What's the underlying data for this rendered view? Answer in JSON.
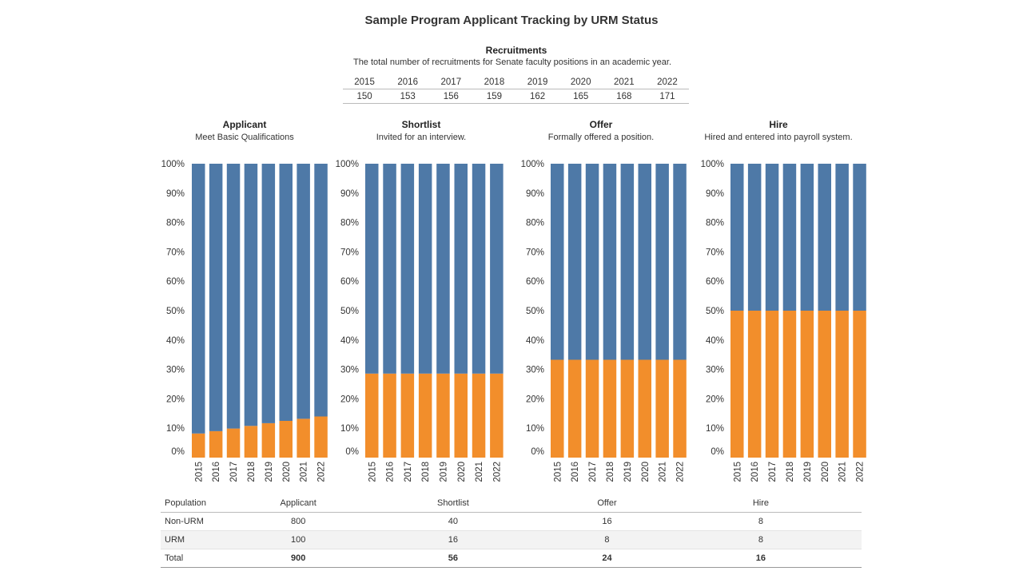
{
  "title": "Sample Program Applicant Tracking by URM Status",
  "recruitments": {
    "title": "Recruitments",
    "subtitle": "The total number of recruitments for Senate faculty positions in an academic year.",
    "years": [
      "2015",
      "2016",
      "2017",
      "2018",
      "2019",
      "2020",
      "2021",
      "2022"
    ],
    "values": [
      "150",
      "153",
      "156",
      "159",
      "162",
      "165",
      "168",
      "171"
    ]
  },
  "panels": [
    {
      "title": "Applicant",
      "subtitle": "Meet Basic Qualifications"
    },
    {
      "title": "Shortlist",
      "subtitle": "Invited for an interview."
    },
    {
      "title": "Offer",
      "subtitle": "Formally offered a position."
    },
    {
      "title": "Hire",
      "subtitle": "Hired and entered into payroll system."
    }
  ],
  "colors": {
    "non_urm": "#4e79a7",
    "urm": "#f28e2b"
  },
  "chart_data": [
    {
      "type": "bar",
      "stacked": true,
      "normalized": true,
      "categories": [
        "2015",
        "2016",
        "2017",
        "2018",
        "2019",
        "2020",
        "2021",
        "2022"
      ],
      "y_tick_labels": [
        "0%",
        "10%",
        "20%",
        "30%",
        "40%",
        "50%",
        "60%",
        "70%",
        "80%",
        "90%",
        "100%"
      ],
      "ylim": [
        0,
        100
      ],
      "series": [
        {
          "values": [
            8.2,
            9.0,
            9.9,
            10.8,
            11.7,
            12.5,
            13.2,
            14.0
          ]
        },
        {
          "values": [
            91.8,
            91.0,
            90.1,
            89.2,
            88.3,
            87.5,
            86.8,
            86.0
          ]
        }
      ]
    },
    {
      "type": "bar",
      "stacked": true,
      "normalized": true,
      "categories": [
        "2015",
        "2016",
        "2017",
        "2018",
        "2019",
        "2020",
        "2021",
        "2022"
      ],
      "y_tick_labels": [
        "0%",
        "10%",
        "20%",
        "30%",
        "40%",
        "50%",
        "60%",
        "70%",
        "80%",
        "90%",
        "100%"
      ],
      "ylim": [
        0,
        100
      ],
      "series": [
        {
          "values": [
            28.6,
            28.6,
            28.6,
            28.6,
            28.6,
            28.6,
            28.6,
            28.6
          ]
        },
        {
          "values": [
            71.4,
            71.4,
            71.4,
            71.4,
            71.4,
            71.4,
            71.4,
            71.4
          ]
        }
      ]
    },
    {
      "type": "bar",
      "stacked": true,
      "normalized": true,
      "categories": [
        "2015",
        "2016",
        "2017",
        "2018",
        "2019",
        "2020",
        "2021",
        "2022"
      ],
      "y_tick_labels": [
        "0%",
        "10%",
        "20%",
        "30%",
        "40%",
        "50%",
        "60%",
        "70%",
        "80%",
        "90%",
        "100%"
      ],
      "ylim": [
        0,
        100
      ],
      "series": [
        {
          "values": [
            33.3,
            33.3,
            33.3,
            33.3,
            33.3,
            33.3,
            33.3,
            33.3
          ]
        },
        {
          "values": [
            66.7,
            66.7,
            66.7,
            66.7,
            66.7,
            66.7,
            66.7,
            66.7
          ]
        }
      ]
    },
    {
      "type": "bar",
      "stacked": true,
      "normalized": true,
      "categories": [
        "2015",
        "2016",
        "2017",
        "2018",
        "2019",
        "2020",
        "2021",
        "2022"
      ],
      "y_tick_labels": [
        "0%",
        "10%",
        "20%",
        "30%",
        "40%",
        "50%",
        "60%",
        "70%",
        "80%",
        "90%",
        "100%"
      ],
      "ylim": [
        0,
        100
      ],
      "series": [
        {
          "values": [
            50,
            50,
            50,
            50,
            50,
            50,
            50,
            50
          ]
        },
        {
          "values": [
            50,
            50,
            50,
            50,
            50,
            50,
            50,
            50
          ]
        }
      ]
    }
  ],
  "population_table": {
    "headers": [
      "Population",
      "Applicant",
      "Shortlist",
      "Offer",
      "Hire"
    ],
    "rows": [
      [
        "Non-URM",
        "800",
        "40",
        "16",
        "8"
      ],
      [
        "URM",
        "100",
        "16",
        "8",
        "8"
      ],
      [
        "Total",
        "900",
        "56",
        "24",
        "16"
      ]
    ]
  }
}
